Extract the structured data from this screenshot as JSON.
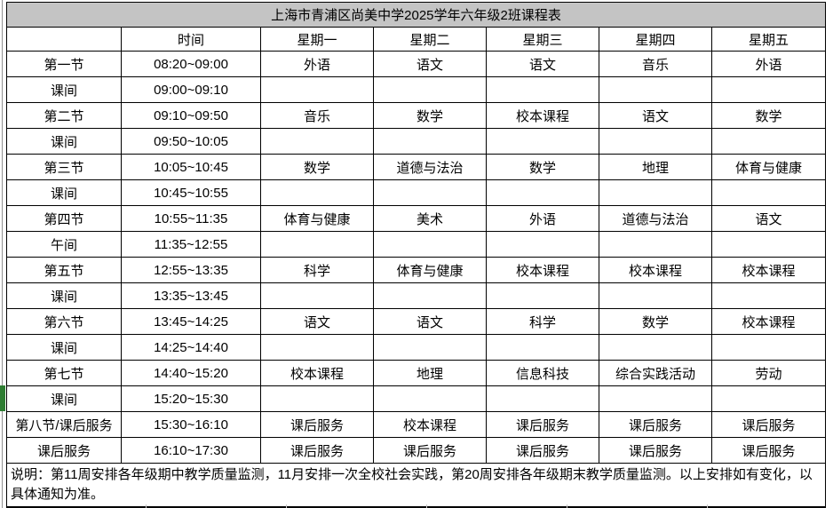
{
  "title": "上海市青浦区尚美中学2025学年六年级2班课程表",
  "header": {
    "corner": "",
    "time_label": "时间",
    "days": [
      "星期一",
      "星期二",
      "星期三",
      "星期四",
      "星期五"
    ]
  },
  "rows": [
    {
      "label": "第一节",
      "time": "08:20~09:00",
      "type": "class",
      "cells": [
        "外语",
        "语文",
        "语文",
        "音乐",
        "外语"
      ]
    },
    {
      "label": "课间",
      "time": "09:00~09:10",
      "type": "break",
      "cells": [
        "",
        "",
        "",
        "",
        ""
      ]
    },
    {
      "label": "第二节",
      "time": "09:10~09:50",
      "type": "class",
      "cells": [
        "音乐",
        "数学",
        "校本课程",
        "语文",
        "数学"
      ]
    },
    {
      "label": "课间",
      "time": "09:50~10:05",
      "type": "break",
      "cells": [
        "",
        "",
        "",
        "",
        ""
      ]
    },
    {
      "label": "第三节",
      "time": "10:05~10:45",
      "type": "class",
      "cells": [
        "数学",
        "道德与法治",
        "数学",
        "地理",
        "体育与健康"
      ]
    },
    {
      "label": "课间",
      "time": "10:45~10:55",
      "type": "break",
      "cells": [
        "",
        "",
        "",
        "",
        ""
      ]
    },
    {
      "label": "第四节",
      "time": "10:55~11:35",
      "type": "class",
      "cells": [
        "体育与健康",
        "美术",
        "外语",
        "道德与法治",
        "语文"
      ]
    },
    {
      "label": "午间",
      "time": "11:35~12:55",
      "type": "break",
      "cells": [
        "",
        "",
        "",
        "",
        ""
      ]
    },
    {
      "label": "第五节",
      "time": "12:55~13:35",
      "type": "class",
      "cells": [
        "科学",
        "体育与健康",
        "校本课程",
        "校本课程",
        "校本课程"
      ]
    },
    {
      "label": "课间",
      "time": "13:35~13:45",
      "type": "break",
      "cells": [
        "",
        "",
        "",
        "",
        ""
      ]
    },
    {
      "label": "第六节",
      "time": "13:45~14:25",
      "type": "class",
      "cells": [
        "语文",
        "语文",
        "科学",
        "数学",
        "校本课程"
      ]
    },
    {
      "label": "课间",
      "time": "14:25~14:40",
      "type": "break",
      "cells": [
        "",
        "",
        "",
        "",
        ""
      ]
    },
    {
      "label": "第七节",
      "time": "14:40~15:20",
      "type": "class",
      "cells": [
        "校本课程",
        "地理",
        "信息科技",
        "综合实践活动",
        "劳动"
      ]
    },
    {
      "label": "课间",
      "time": "15:20~15:30",
      "type": "break",
      "cells": [
        "",
        "",
        "",
        "",
        ""
      ]
    },
    {
      "label": "第八节/课后服务",
      "time": "15:30~16:10",
      "type": "yellow",
      "cells": [
        "课后服务",
        "校本课程",
        "课后服务",
        "课后服务",
        "课后服务"
      ]
    },
    {
      "label": "课后服务",
      "time": "16:10~17:30",
      "type": "blue",
      "cells": [
        "课后服务",
        "课后服务",
        "课后服务",
        "课后服务",
        "课后服务"
      ]
    }
  ],
  "note": "说明：第11周安排各年级期中教学质量监测，11月安排一次全校社会实践，第20周安排各年级期末教学质量监测。以上安排如有变化，以具体通知为准。",
  "colors": {
    "class_cell": "#F5B98A",
    "break_cell": "#D9D9D9",
    "afterschool_yellow": "#FFFF00",
    "afterschool_blue": "#00B0F0",
    "title_bg": "#C4C4C4",
    "active_row_marker": "#2E7D32"
  }
}
